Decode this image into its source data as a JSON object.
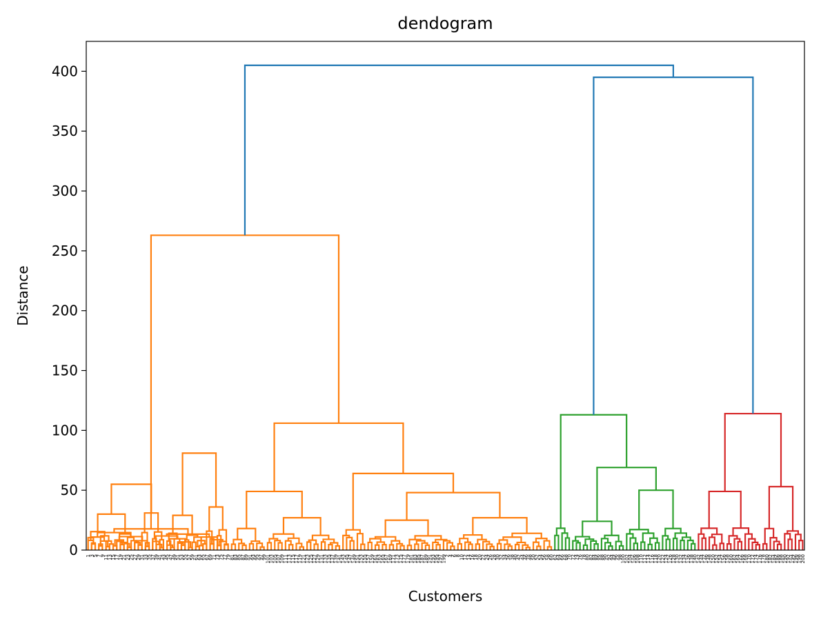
{
  "chart_data": {
    "type": "dendrogram",
    "title": "dendogram",
    "xlabel": "Customers",
    "ylabel": "Distance",
    "ylim": [
      0,
      425
    ],
    "yticks": [
      0,
      50,
      100,
      150,
      200,
      250,
      300,
      350,
      400
    ],
    "leaf_count": 200,
    "colors": {
      "root": "#1f77b4",
      "cluster_orange": "#ff7f0e",
      "cluster_green": "#2ca02c",
      "cluster_red": "#d62728"
    },
    "clusters": [
      {
        "color": "cluster_orange",
        "leaf_range": [
          0,
          130
        ],
        "top_height": 263
      },
      {
        "color": "cluster_green",
        "leaf_range": [
          130,
          170
        ],
        "top_height": 113
      },
      {
        "color": "cluster_red",
        "leaf_range": [
          170,
          200
        ],
        "top_height": 114
      }
    ],
    "merges": [
      {
        "color": "cluster_orange",
        "left": [
          0,
          15
        ],
        "right": [
          15,
          22
        ],
        "height": 55
      },
      {
        "color": "cluster_orange",
        "left": [
          0,
          8
        ],
        "right": [
          8,
          15
        ],
        "height": 30
      },
      {
        "color": "cluster_orange",
        "left": [
          15,
          18
        ],
        "right": [
          18,
          22
        ],
        "height": 31
      },
      {
        "color": "cluster_orange",
        "left": [
          22,
          33
        ],
        "right": [
          33,
          40
        ],
        "height": 81
      },
      {
        "color": "cluster_orange",
        "left": [
          22,
          27
        ],
        "right": [
          27,
          33
        ],
        "height": 29
      },
      {
        "color": "cluster_orange",
        "left": [
          33,
          36
        ],
        "right": [
          36,
          40
        ],
        "height": 36
      },
      {
        "color": "cluster_orange",
        "left": [
          40,
          71
        ],
        "right": [
          71,
          130
        ],
        "height": 106
      },
      {
        "color": "cluster_orange",
        "left": [
          40,
          50
        ],
        "right": [
          50,
          71
        ],
        "height": 49
      },
      {
        "color": "cluster_orange",
        "left": [
          40,
          45
        ],
        "right": [
          45,
          50
        ],
        "height": 18
      },
      {
        "color": "cluster_orange",
        "left": [
          50,
          61
        ],
        "right": [
          61,
          71
        ],
        "height": 27
      },
      {
        "color": "cluster_orange",
        "left": [
          71,
          78
        ],
        "right": [
          78,
          130
        ],
        "height": 64
      },
      {
        "color": "cluster_orange",
        "left": [
          78,
          103
        ],
        "right": [
          103,
          130
        ],
        "height": 48
      },
      {
        "color": "cluster_orange",
        "left": [
          78,
          89
        ],
        "right": [
          89,
          103
        ],
        "height": 25
      },
      {
        "color": "cluster_orange",
        "left": [
          103,
          114
        ],
        "right": [
          114,
          130
        ],
        "height": 27
      },
      {
        "color": "cluster_orange",
        "left": [
          0,
          40
        ],
        "right": [
          40,
          130
        ],
        "height": 263,
        "sub": "left22_right"
      },
      {
        "color": "cluster_green",
        "left": [
          130,
          135
        ],
        "right": [
          135,
          170
        ],
        "height": 113
      },
      {
        "color": "cluster_green",
        "left": [
          135,
          150
        ],
        "right": [
          150,
          170
        ],
        "height": 69
      },
      {
        "color": "cluster_green",
        "left": [
          135,
          143
        ],
        "right": [
          143,
          150
        ],
        "height": 24
      },
      {
        "color": "cluster_green",
        "left": [
          150,
          160
        ],
        "right": [
          160,
          170
        ],
        "height": 50
      },
      {
        "color": "cluster_red",
        "left": [
          170,
          188
        ],
        "right": [
          188,
          200
        ],
        "height": 114
      },
      {
        "color": "cluster_red",
        "left": [
          170,
          178
        ],
        "right": [
          178,
          188
        ],
        "height": 49
      },
      {
        "color": "cluster_red",
        "left": [
          188,
          194
        ],
        "right": [
          194,
          200
        ],
        "height": 53
      },
      {
        "color": "root",
        "left": [
          130,
          170
        ],
        "right": [
          170,
          200
        ],
        "height": 395
      },
      {
        "color": "root",
        "left": [
          0,
          130
        ],
        "right": [
          130,
          200
        ],
        "height": 405
      }
    ],
    "leaf_labels": [
      "1",
      "3",
      "5",
      "7",
      "9",
      "11",
      "13",
      "15",
      "17",
      "19",
      "21",
      "23",
      "25",
      "27",
      "29",
      "31",
      "33",
      "35",
      "37",
      "39",
      "41",
      "43",
      "45",
      "47",
      "49",
      "51",
      "53",
      "55",
      "57",
      "59",
      "61",
      "63",
      "65",
      "67",
      "69",
      "71",
      "73",
      "75",
      "77",
      "79",
      "81",
      "83",
      "85",
      "87",
      "89",
      "91",
      "93",
      "95",
      "97",
      "99",
      "101",
      "103",
      "105",
      "107",
      "109",
      "111",
      "113",
      "115",
      "117",
      "119",
      "121",
      "123",
      "125",
      "127",
      "129",
      "131",
      "133",
      "135",
      "137",
      "139",
      "141",
      "143",
      "145",
      "147",
      "149",
      "151",
      "153",
      "155",
      "157",
      "159",
      "161",
      "163",
      "165",
      "167",
      "169",
      "171",
      "173",
      "175",
      "177",
      "179",
      "181",
      "183",
      "185",
      "187",
      "189",
      "191",
      "193",
      "195",
      "197",
      "199",
      "2",
      "4",
      "6",
      "8",
      "10",
      "12",
      "14",
      "16",
      "18",
      "20",
      "22",
      "24",
      "26",
      "28",
      "30",
      "32",
      "34",
      "36",
      "38",
      "40",
      "42",
      "44",
      "46",
      "48",
      "50",
      "52",
      "54",
      "56",
      "58",
      "60",
      "62",
      "64",
      "66",
      "68",
      "70",
      "72",
      "74",
      "76",
      "78",
      "80",
      "82",
      "84",
      "86",
      "88",
      "90",
      "92",
      "94",
      "96",
      "98",
      "100",
      "102",
      "104",
      "106",
      "108",
      "110",
      "112",
      "114",
      "116",
      "118",
      "120",
      "122",
      "124",
      "126",
      "128",
      "130",
      "132",
      "134",
      "136",
      "138",
      "140",
      "142",
      "144",
      "146",
      "148",
      "150",
      "152",
      "154",
      "156",
      "158",
      "160",
      "162",
      "164",
      "166",
      "168",
      "170",
      "172",
      "174",
      "176",
      "178",
      "180",
      "182",
      "184",
      "186",
      "188",
      "190",
      "192",
      "194",
      "196",
      "198",
      "200"
    ]
  }
}
